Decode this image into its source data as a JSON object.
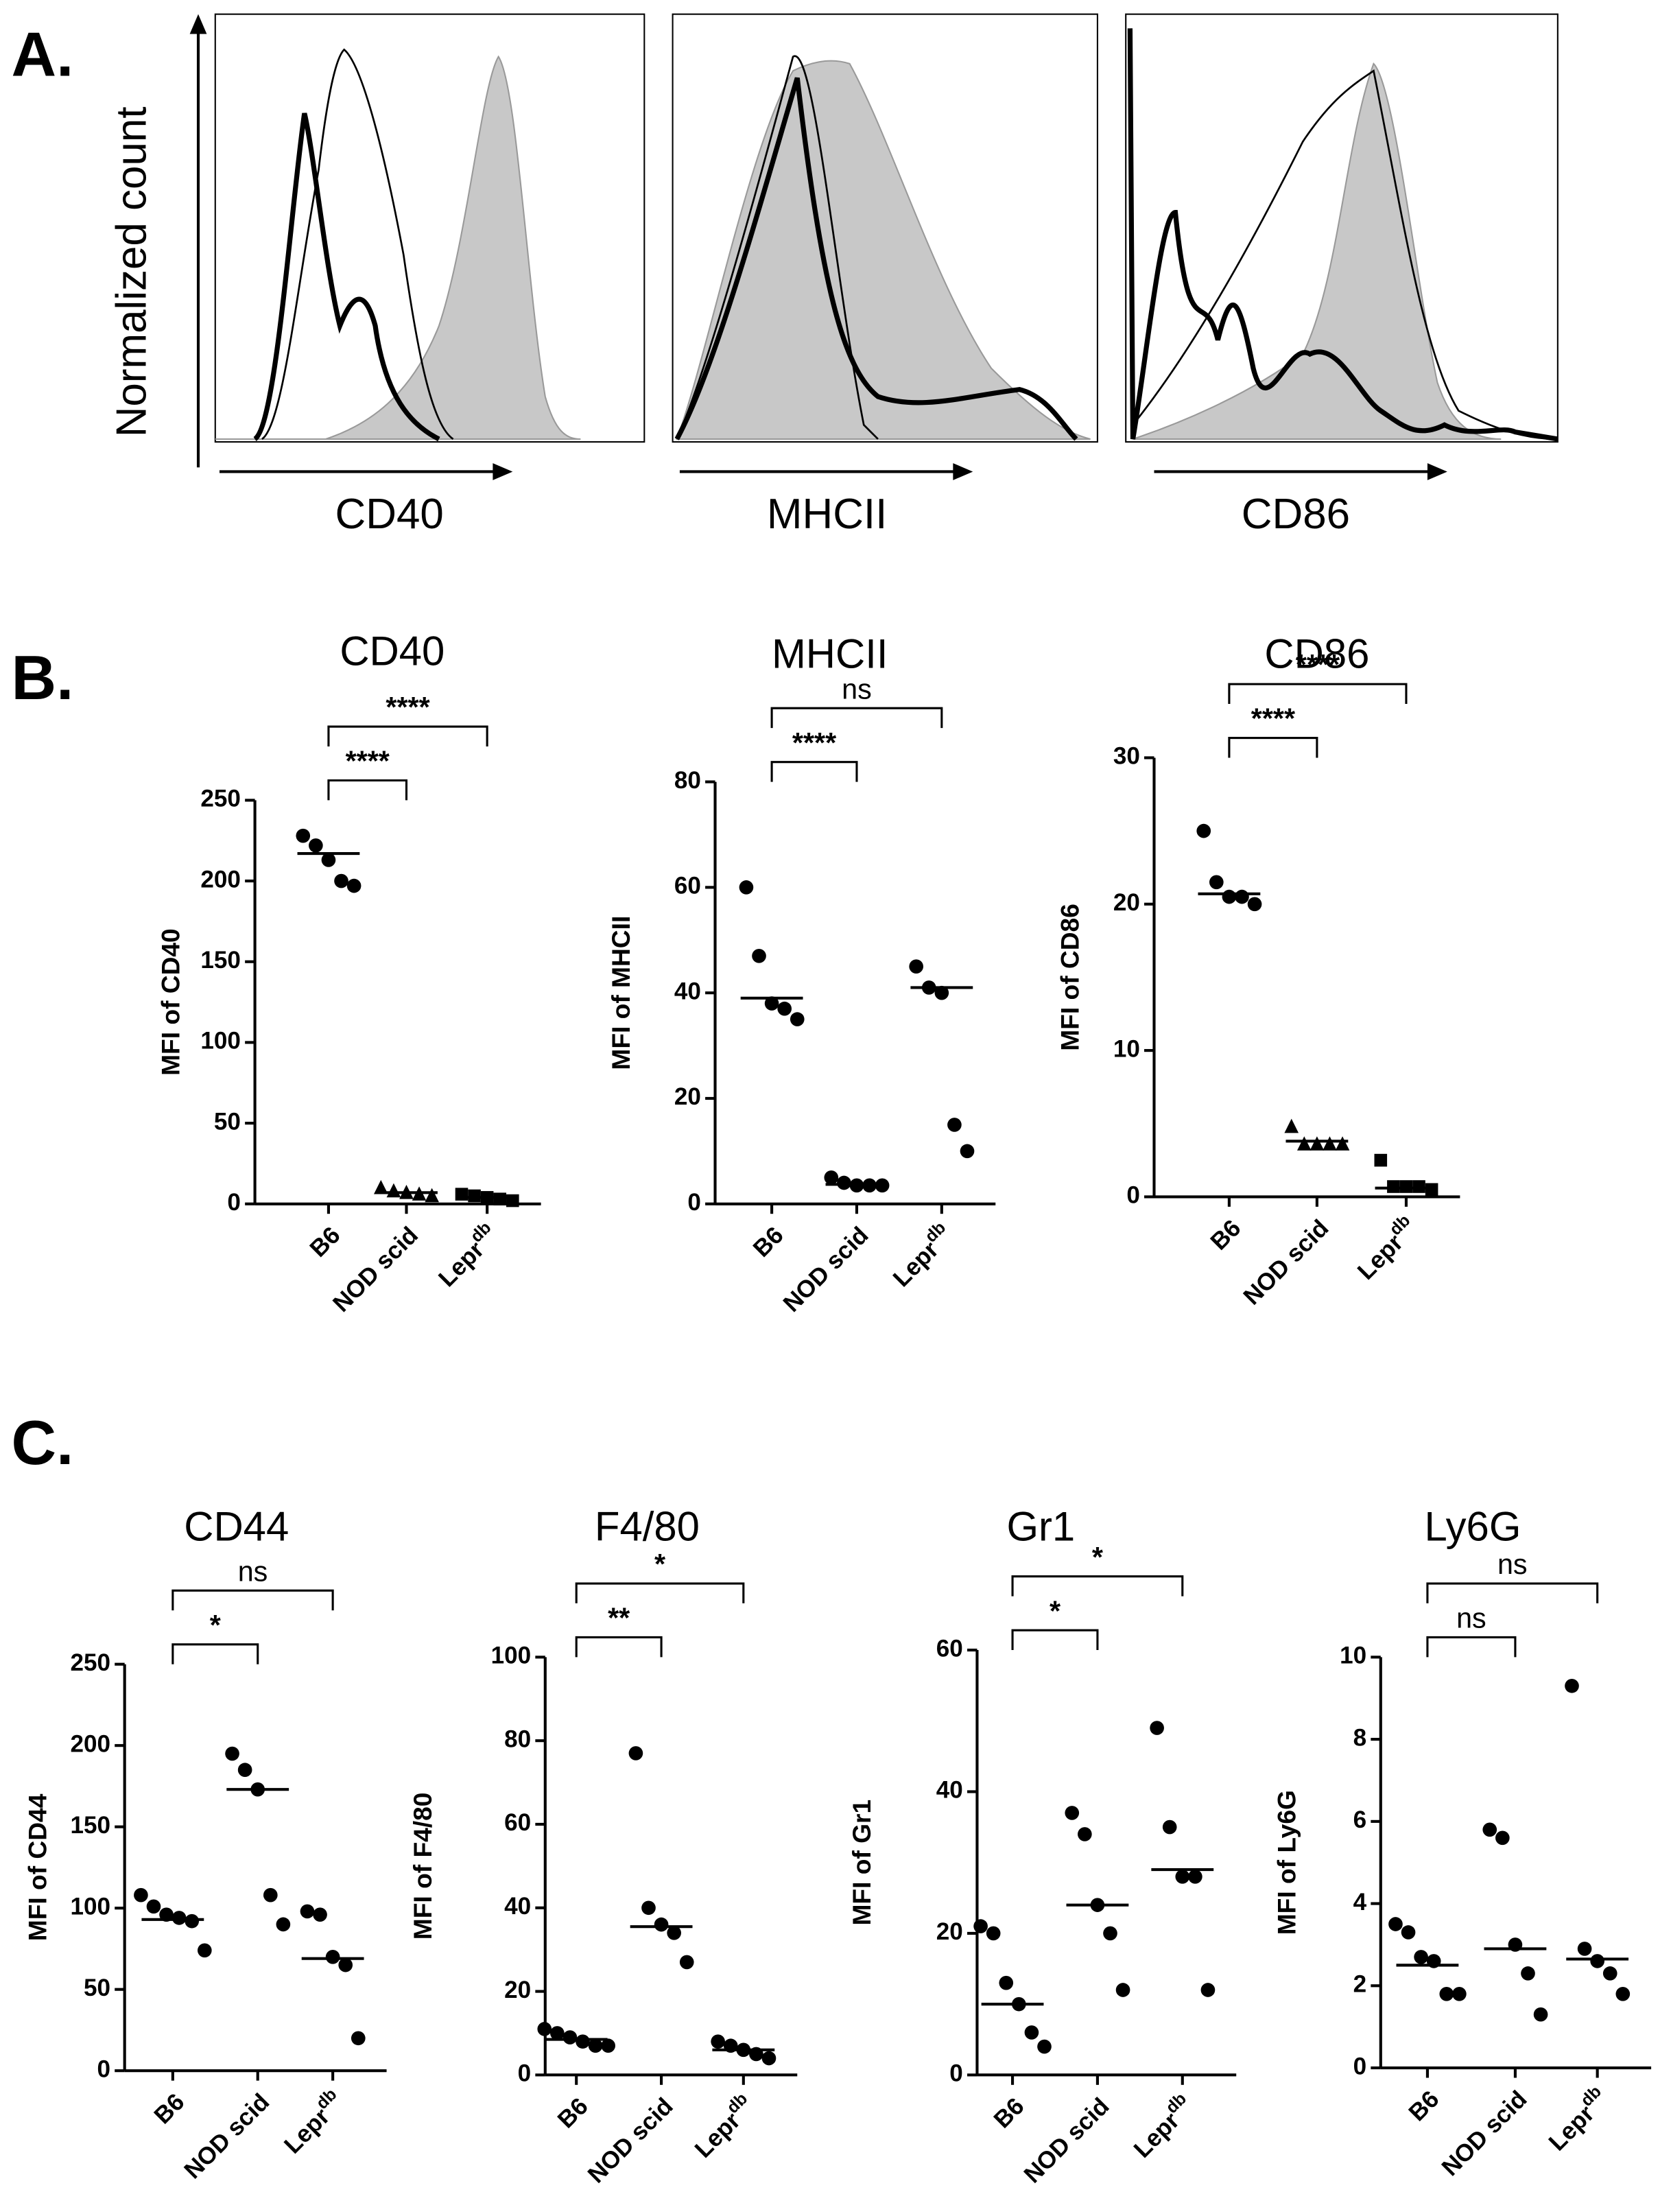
{
  "panel_labels": [
    "A.",
    "B.",
    "C."
  ],
  "histograms": {
    "ylabel": "Normalized count",
    "xlabels": [
      "CD40",
      "MHCII",
      "CD86"
    ]
  },
  "chart_data": [
    {
      "type": "dot",
      "title": "CD40",
      "ylabel": "MFI of CD40",
      "categories": [
        "B6",
        "NOD scid",
        {
          "base": "Lepr",
          "sup": "db"
        }
      ],
      "markers": [
        "circle",
        "triangle",
        "square"
      ],
      "points": [
        [
          228,
          222,
          213,
          200,
          197
        ],
        [
          10,
          8,
          7,
          6,
          5
        ],
        [
          6,
          5,
          4,
          3,
          2
        ]
      ],
      "medians": [
        217,
        7,
        4
      ],
      "ylim": [
        0,
        250
      ],
      "yticks": [
        0,
        50,
        100,
        150,
        200,
        250
      ],
      "comparisons": [
        {
          "from": 0,
          "to": 1,
          "label": "****"
        },
        {
          "from": 0,
          "to": 2,
          "label": "****"
        }
      ]
    },
    {
      "type": "dot",
      "title": "MHCII",
      "ylabel": "MFI of MHCII",
      "categories": [
        "B6",
        "NOD scid",
        {
          "base": "Lepr",
          "sup": "db"
        }
      ],
      "markers": [
        "circle",
        "circle",
        "circle"
      ],
      "points": [
        [
          60,
          47,
          38,
          37,
          35
        ],
        [
          5,
          4,
          3.5,
          3.5,
          3.5
        ],
        [
          45,
          41,
          40,
          15,
          10
        ]
      ],
      "medians": [
        39,
        3.7,
        41
      ],
      "ylim": [
        0,
        80
      ],
      "yticks": [
        0,
        20,
        40,
        60,
        80
      ],
      "comparisons": [
        {
          "from": 0,
          "to": 1,
          "label": "****"
        },
        {
          "from": 0,
          "to": 2,
          "label": "ns"
        }
      ]
    },
    {
      "type": "dot",
      "title": "CD86",
      "ylabel": "MFI of CD86",
      "categories": [
        "B6",
        "NOD scid",
        {
          "base": "Lepr",
          "sup": "db"
        }
      ],
      "markers": [
        "circle",
        "triangle",
        "square"
      ],
      "points": [
        [
          25,
          21.5,
          20.5,
          20.5,
          20
        ],
        [
          4.8,
          3.6,
          3.6,
          3.6,
          3.6
        ],
        [
          2.5,
          0.7,
          0.7,
          0.7,
          0.5
        ]
      ],
      "medians": [
        20.7,
        3.8,
        0.6
      ],
      "ylim": [
        0,
        30
      ],
      "yticks": [
        0,
        10,
        20,
        30
      ],
      "comparisons": [
        {
          "from": 0,
          "to": 1,
          "label": "****"
        },
        {
          "from": 0,
          "to": 2,
          "label": "****"
        }
      ]
    },
    {
      "type": "dot",
      "title": "CD44",
      "ylabel": "MFI of CD44",
      "categories": [
        "B6",
        "NOD scid",
        {
          "base": "Lepr",
          "sup": "db"
        }
      ],
      "markers": [
        "circle",
        "circle",
        "circle"
      ],
      "points": [
        [
          108,
          101,
          96,
          94,
          92,
          74
        ],
        [
          195,
          185,
          173,
          108,
          90
        ],
        [
          98,
          96,
          70,
          65,
          20
        ]
      ],
      "medians": [
        93,
        173,
        69
      ],
      "ylim": [
        0,
        250
      ],
      "yticks": [
        0,
        50,
        100,
        150,
        200,
        250
      ],
      "comparisons": [
        {
          "from": 0,
          "to": 1,
          "label": "*"
        },
        {
          "from": 0,
          "to": 2,
          "label": "ns"
        }
      ]
    },
    {
      "type": "dot",
      "title": "F4/80",
      "ylabel": "MFI of F4/80",
      "categories": [
        "B6",
        "NOD scid",
        {
          "base": "Lepr",
          "sup": "db"
        }
      ],
      "markers": [
        "circle",
        "circle",
        "circle"
      ],
      "points": [
        [
          11,
          10,
          9,
          8,
          7,
          7
        ],
        [
          77,
          40,
          36,
          34,
          27
        ],
        [
          8,
          7,
          6,
          5,
          4
        ]
      ],
      "medians": [
        8.5,
        35.5,
        6
      ],
      "ylim": [
        0,
        100
      ],
      "yticks": [
        0,
        20,
        40,
        60,
        80,
        100
      ],
      "comparisons": [
        {
          "from": 0,
          "to": 1,
          "label": "**"
        },
        {
          "from": 0,
          "to": 2,
          "label": "*"
        }
      ]
    },
    {
      "type": "dot",
      "title": "Gr1",
      "ylabel": "MFI of Gr1",
      "categories": [
        "B6",
        "NOD scid",
        {
          "base": "Lepr",
          "sup": "db"
        }
      ],
      "markers": [
        "circle",
        "circle",
        "circle"
      ],
      "points": [
        [
          21,
          20,
          13,
          10,
          6,
          4
        ],
        [
          37,
          34,
          24,
          20,
          12
        ],
        [
          49,
          35,
          28,
          28,
          12
        ]
      ],
      "medians": [
        10,
        24,
        29
      ],
      "ylim": [
        0,
        60
      ],
      "yticks": [
        0,
        20,
        40,
        60
      ],
      "comparisons": [
        {
          "from": 0,
          "to": 1,
          "label": "*"
        },
        {
          "from": 0,
          "to": 2,
          "label": "*"
        }
      ]
    },
    {
      "type": "dot",
      "title": "Ly6G",
      "ylabel": "MFI of Ly6G",
      "categories": [
        "B6",
        "NOD scid",
        {
          "base": "Lepr",
          "sup": "db"
        }
      ],
      "markers": [
        "circle",
        "circle",
        "circle"
      ],
      "points": [
        [
          3.5,
          3.3,
          2.7,
          2.6,
          1.8,
          1.8
        ],
        [
          5.8,
          5.6,
          3,
          2.3,
          1.3
        ],
        [
          9.3,
          2.9,
          2.6,
          2.3,
          1.8
        ]
      ],
      "medians": [
        2.5,
        2.9,
        2.65
      ],
      "ylim": [
        0,
        10
      ],
      "yticks": [
        0,
        2,
        4,
        6,
        8,
        10
      ],
      "comparisons": [
        {
          "from": 0,
          "to": 1,
          "label": "ns"
        },
        {
          "from": 0,
          "to": 2,
          "label": "ns"
        }
      ]
    }
  ]
}
